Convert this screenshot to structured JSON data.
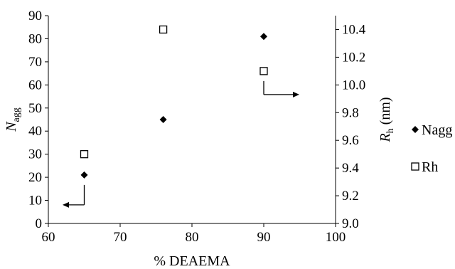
{
  "chart_data": {
    "type": "scatter",
    "xlabel": "% DEAEMA",
    "ylabel_left": {
      "main": "N",
      "sub": "agg"
    },
    "ylabel_right": {
      "main": "R",
      "sub": "h",
      "suffix": " (nm)"
    },
    "xlim": [
      60,
      100
    ],
    "ylim_left": [
      0,
      90
    ],
    "ylim_right": [
      9.0,
      10.5
    ],
    "x_ticks": [
      "60",
      "70",
      "80",
      "90",
      "100"
    ],
    "y_left_ticks": [
      "0",
      "10",
      "20",
      "30",
      "40",
      "50",
      "60",
      "70",
      "80",
      "90"
    ],
    "y_right_ticks": [
      "9.0",
      "9.2",
      "9.4",
      "9.6",
      "9.8",
      "10.0",
      "10.2",
      "10.4"
    ],
    "grid": false,
    "legend_position": "right",
    "series": [
      {
        "name": "Nagg",
        "axis": "left",
        "marker": "filled-diamond",
        "color": "#000000",
        "points": [
          {
            "x": 65,
            "y": 21
          },
          {
            "x": 76,
            "y": 45
          },
          {
            "x": 90,
            "y": 81
          }
        ]
      },
      {
        "name": "Rh",
        "axis": "right",
        "marker": "open-square",
        "color": "#000000",
        "points": [
          {
            "x": 65,
            "y": 9.5
          },
          {
            "x": 76,
            "y": 10.4
          },
          {
            "x": 90,
            "y": 10.1
          }
        ]
      }
    ],
    "annotations": [
      {
        "name": "left-axis-arrow",
        "anchor_series": "Nagg",
        "anchor_x": 65,
        "points_to": "left-axis"
      },
      {
        "name": "right-axis-arrow",
        "anchor_series": "Rh",
        "anchor_x": 90,
        "points_to": "right-axis"
      }
    ]
  }
}
